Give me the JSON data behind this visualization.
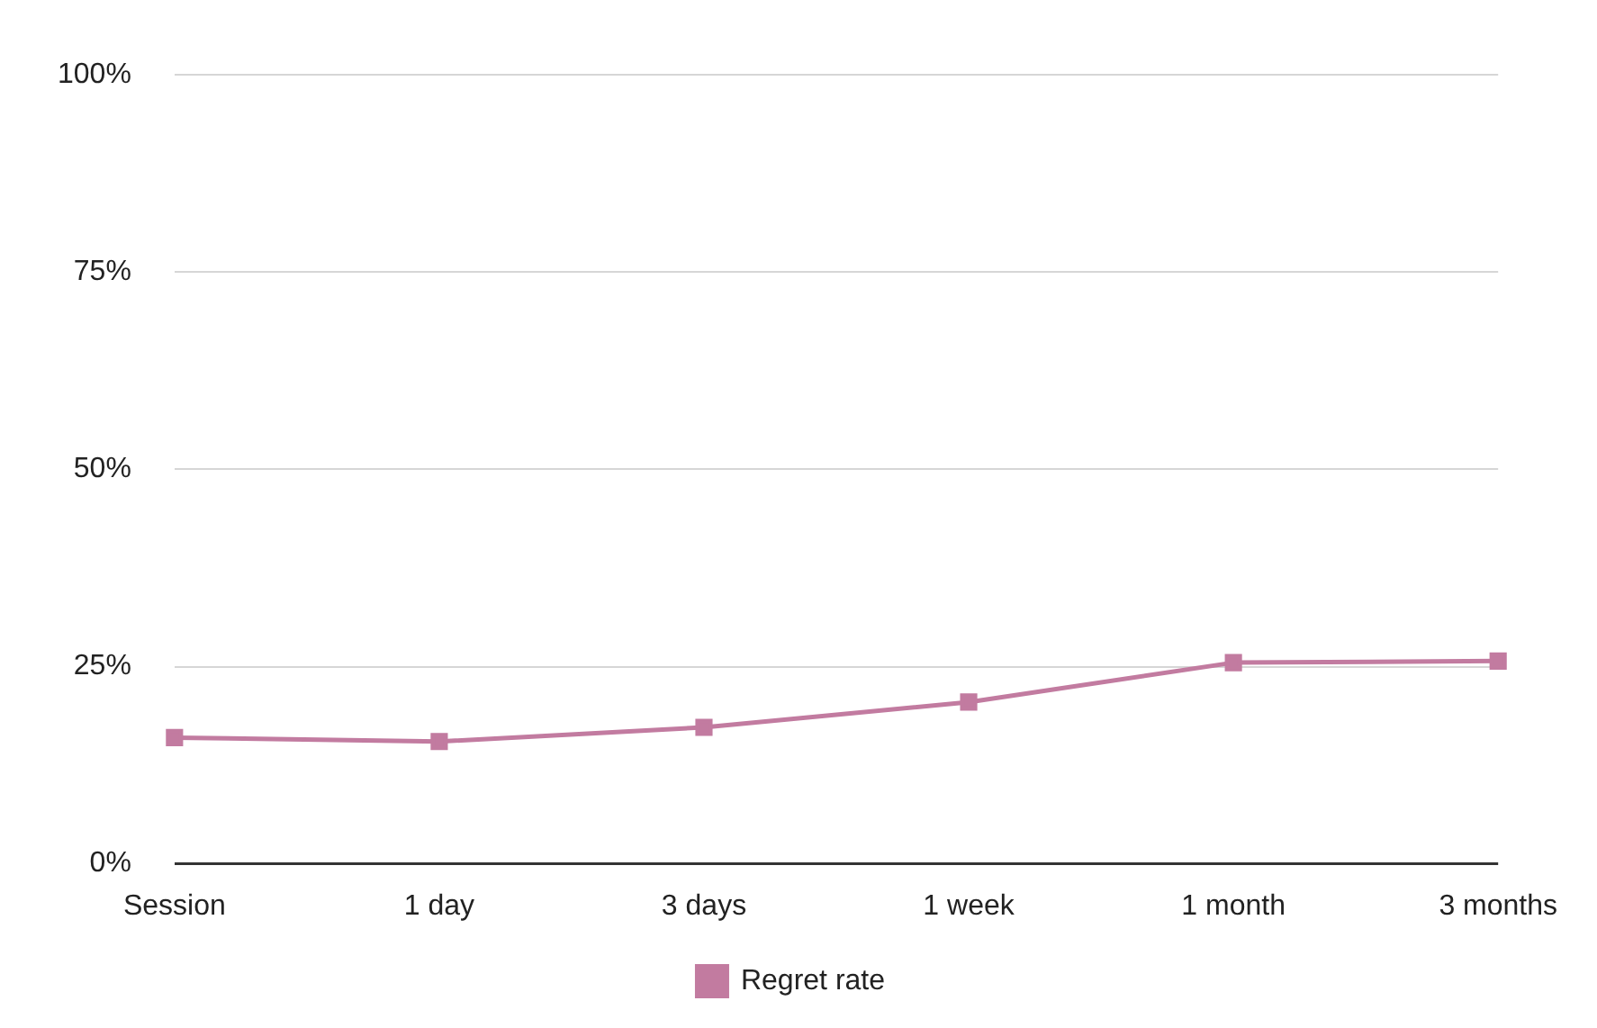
{
  "chart_data": {
    "type": "line",
    "categories": [
      "Session",
      "1 day",
      "3 days",
      "1 week",
      "1 month",
      "3 months"
    ],
    "series": [
      {
        "name": "Regret rate",
        "color": "#c27ba0",
        "values": [
          16,
          15.5,
          17.3,
          20.5,
          25.5,
          25.7
        ]
      }
    ],
    "ylim": [
      0,
      100
    ],
    "yticks": [
      {
        "value": 0,
        "label": "0%"
      },
      {
        "value": 25,
        "label": "25%"
      },
      {
        "value": 50,
        "label": "50%"
      },
      {
        "value": 75,
        "label": "75%"
      },
      {
        "value": 100,
        "label": "100%"
      }
    ],
    "grid": "y",
    "legend": "bottom",
    "marker": "square",
    "line_style": "solid"
  }
}
